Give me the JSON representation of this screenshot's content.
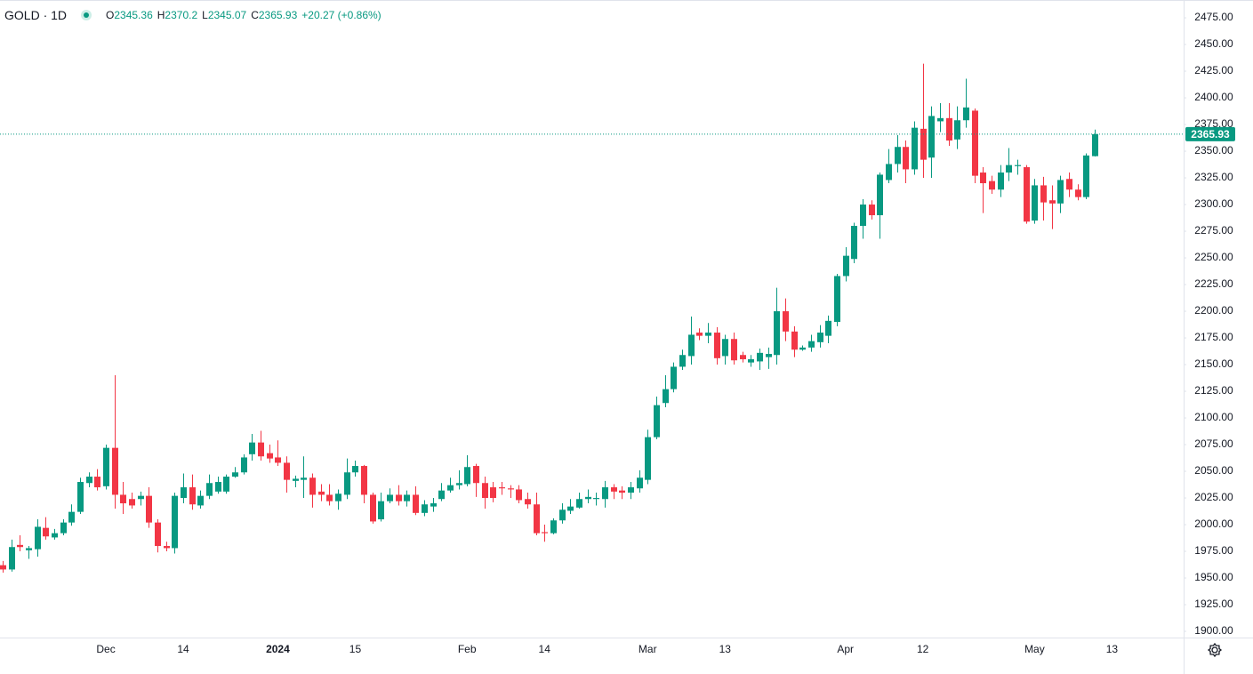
{
  "header": {
    "symbol": "GOLD · 1D",
    "ohlc_labels": [
      "O",
      "H",
      "L",
      "C"
    ],
    "change": "+20.27 (+0.86%)"
  },
  "chart_data": {
    "type": "candlestick",
    "up_color": "#089981",
    "down_color": "#f23645",
    "ylim": [
      1894.2,
      2491.7
    ],
    "yticks": [
      {
        "value": 1900,
        "label": "1900.00"
      },
      {
        "value": 1925,
        "label": "1925.00"
      },
      {
        "value": 1950,
        "label": "1950.00"
      },
      {
        "value": 1975,
        "label": "1975.00"
      },
      {
        "value": 2000,
        "label": "2000.00"
      },
      {
        "value": 2025,
        "label": "2025.00"
      },
      {
        "value": 2050,
        "label": "2050.00"
      },
      {
        "value": 2075,
        "label": "2075.00"
      },
      {
        "value": 2100,
        "label": "2100.00"
      },
      {
        "value": 2125,
        "label": "2125.00"
      },
      {
        "value": 2150,
        "label": "2150.00"
      },
      {
        "value": 2175,
        "label": "2175.00"
      },
      {
        "value": 2200,
        "label": "2200.00"
      },
      {
        "value": 2225,
        "label": "2225.00"
      },
      {
        "value": 2250,
        "label": "2250.00"
      },
      {
        "value": 2275,
        "label": "2275.00"
      },
      {
        "value": 2300,
        "label": "2300.00"
      },
      {
        "value": 2325,
        "label": "2325.00"
      },
      {
        "value": 2350,
        "label": "2350.00"
      },
      {
        "value": 2375,
        "label": "2375.00"
      },
      {
        "value": 2400,
        "label": "2400.00"
      },
      {
        "value": 2425,
        "label": "2425.00"
      },
      {
        "value": 2450,
        "label": "2450.00"
      },
      {
        "value": 2475,
        "label": "2475.00"
      }
    ],
    "grid": false,
    "categories": [
      null,
      null,
      null,
      null,
      null,
      null,
      null,
      null,
      null,
      null,
      null,
      null,
      "Dec",
      null,
      null,
      null,
      null,
      null,
      null,
      null,
      null,
      "14",
      null,
      null,
      null,
      null,
      null,
      null,
      null,
      null,
      null,
      null,
      "2024",
      null,
      null,
      null,
      null,
      null,
      null,
      null,
      null,
      "15",
      null,
      null,
      null,
      null,
      null,
      null,
      null,
      null,
      null,
      null,
      null,
      null,
      "Feb",
      null,
      null,
      null,
      null,
      null,
      null,
      null,
      null,
      "14",
      null,
      null,
      null,
      null,
      null,
      null,
      null,
      null,
      null,
      null,
      null,
      "Mar",
      null,
      null,
      null,
      null,
      null,
      null,
      null,
      null,
      "13",
      null,
      null,
      null,
      null,
      null,
      null,
      null,
      null,
      null,
      null,
      null,
      null,
      null,
      "Apr",
      null,
      null,
      null,
      null,
      null,
      null,
      null,
      null,
      "12",
      null,
      null,
      null,
      null,
      null,
      null,
      null,
      null,
      null,
      null,
      null,
      null,
      "May",
      null,
      null,
      null,
      null,
      null,
      null,
      null,
      null,
      "13",
      null,
      null,
      null,
      null,
      null,
      null,
      null,
      null
    ],
    "open": [
      1962,
      1958,
      1981,
      1976,
      1977,
      1997,
      1988,
      1992,
      2002,
      2012,
      2039,
      2045,
      2036,
      2072,
      2028,
      2024,
      2024,
      2027,
      2002,
      1980,
      1978,
      2025,
      2035,
      2018,
      2027,
      2031,
      2031,
      2045,
      2049,
      2066,
      2077,
      2067,
      2063,
      2058,
      2041,
      2042,
      2044,
      2031,
      2028,
      2022,
      2028,
      2049,
      2055,
      2028,
      2005,
      2022,
      2028,
      2022,
      2028,
      2011,
      2017,
      2024,
      2032,
      2037,
      2038,
      2055,
      2039,
      2035,
      2035,
      2034,
      2033,
      2024,
      2019,
      1993,
      1992,
      2004,
      2013,
      2016,
      2024,
      2024,
      2024,
      2035,
      2032,
      2030,
      2034,
      2042,
      2082,
      2114,
      2127,
      2148,
      2158,
      2180,
      2177,
      2180,
      2158,
      2174,
      2159,
      2152,
      2153,
      2157,
      2159,
      2200,
      2181,
      2164,
      2166,
      2171,
      2177,
      2190,
      2233,
      2249,
      2280,
      2300,
      2290,
      2323,
      2338,
      2354,
      2333,
      2371,
      2344,
      2378,
      2381,
      2361,
      2379,
      2388,
      2330,
      2322,
      2314,
      2330,
      2336,
      2335,
      2285,
      2318,
      2304,
      2301,
      2324,
      2314,
      2307,
      2345.36,
      null,
      null,
      null,
      null,
      null,
      null,
      null,
      null,
      null,
      null
    ],
    "high": [
      1966,
      1986,
      1990,
      1980,
      2005,
      2007,
      1996,
      2005,
      2019,
      2044,
      2049,
      2052,
      2075,
      2140,
      2040,
      2030,
      2031,
      2035,
      2005,
      1984,
      2030,
      2048,
      2047,
      2032,
      2047,
      2045,
      2047,
      2054,
      2066,
      2085,
      2088,
      2075,
      2079,
      2064,
      2046,
      2064,
      2048,
      2038,
      2038,
      2033,
      2062,
      2060,
      2056,
      2030,
      2030,
      2034,
      2037,
      2032,
      2036,
      2023,
      2025,
      2039,
      2044,
      2051,
      2065,
      2057,
      2045,
      2040,
      2040,
      2037,
      2037,
      2030,
      2030,
      2000,
      2006,
      2020,
      2024,
      2030,
      2033,
      2030,
      2041,
      2038,
      2036,
      2040,
      2051,
      2089,
      2120,
      2140,
      2152,
      2164,
      2195,
      2184,
      2189,
      2185,
      2178,
      2180,
      2162,
      2159,
      2165,
      2166,
      2222,
      2212,
      2186,
      2168,
      2178,
      2187,
      2196,
      2235,
      2260,
      2283,
      2305,
      2304,
      2330,
      2352,
      2365,
      2360,
      2378,
      2432,
      2392,
      2395,
      2395,
      2392,
      2418,
      2390,
      2335,
      2327,
      2337,
      2353,
      2342,
      2337,
      2324,
      2326,
      2318,
      2327,
      2330,
      2319,
      2348,
      2370.2,
      null,
      null,
      null,
      null,
      null,
      null,
      null,
      null,
      null,
      null
    ],
    "low": [
      1955,
      1956,
      1975,
      1968,
      1970,
      1986,
      1986,
      1990,
      1999,
      2010,
      2035,
      2032,
      2033,
      2015,
      2010,
      2015,
      2018,
      1997,
      1974,
      1975,
      1973,
      2020,
      2014,
      2015,
      2024,
      2029,
      2029,
      2044,
      2047,
      2060,
      2060,
      2058,
      2055,
      2030,
      2035,
      2025,
      2016,
      2022,
      2018,
      2014,
      2024,
      2045,
      2020,
      2001,
      2003,
      2020,
      2018,
      2017,
      2009,
      2008,
      2012,
      2022,
      2030,
      2033,
      2036,
      2026,
      2015,
      2021,
      2028,
      2025,
      2020,
      2015,
      1990,
      1984,
      1991,
      2001,
      2010,
      2015,
      2020,
      2018,
      2016,
      2024,
      2024,
      2024,
      2030,
      2038,
      2080,
      2110,
      2124,
      2145,
      2150,
      2173,
      2170,
      2150,
      2150,
      2150,
      2152,
      2148,
      2145,
      2146,
      2150,
      2172,
      2157,
      2163,
      2162,
      2166,
      2170,
      2186,
      2228,
      2245,
      2268,
      2286,
      2268,
      2320,
      2330,
      2320,
      2328,
      2325,
      2325,
      2368,
      2355,
      2352,
      2372,
      2320,
      2292,
      2310,
      2307,
      2322,
      2328,
      2282,
      2282,
      2285,
      2277,
      2292,
      2307,
      2304,
      2305,
      2345.07,
      null,
      null,
      null,
      null,
      null,
      null,
      null,
      null,
      null,
      null
    ],
    "close": [
      1958,
      1979,
      1979,
      1978,
      1998,
      1989,
      1992,
      2002,
      2012,
      2040,
      2045,
      2035,
      2072,
      2028,
      2020,
      2018,
      2027,
      2002,
      1980,
      1978,
      2027,
      2035,
      2019,
      2027,
      2039,
      2040,
      2045,
      2049,
      2063,
      2077,
      2064,
      2062,
      2058,
      2042,
      2043,
      2044,
      2028,
      2028,
      2022,
      2029,
      2049,
      2055,
      2028,
      2003,
      2022,
      2028,
      2022,
      2028,
      2011,
      2019,
      2020,
      2032,
      2037,
      2039,
      2054,
      2039,
      2025,
      2025,
      2034,
      2033,
      2023,
      2019,
      1992,
      1992,
      2004,
      2014,
      2017,
      2024,
      2026,
      2025,
      2035,
      2031,
      2030,
      2035,
      2044,
      2082,
      2112,
      2127,
      2148,
      2159,
      2178,
      2177,
      2180,
      2156,
      2174,
      2154,
      2155,
      2155,
      2161,
      2160,
      2200,
      2181,
      2164,
      2166,
      2172,
      2180,
      2191,
      2233,
      2252,
      2280,
      2300,
      2290,
      2328,
      2338,
      2354,
      2333,
      2372,
      2342,
      2383,
      2381,
      2360,
      2379,
      2391,
      2327,
      2320,
      2314,
      2330,
      2337,
      2337,
      2284,
      2318,
      2302,
      2301,
      2323,
      2314,
      2307,
      2346,
      2365.93,
      null,
      null,
      null,
      null,
      null,
      null,
      null,
      null,
      null,
      null
    ]
  }
}
